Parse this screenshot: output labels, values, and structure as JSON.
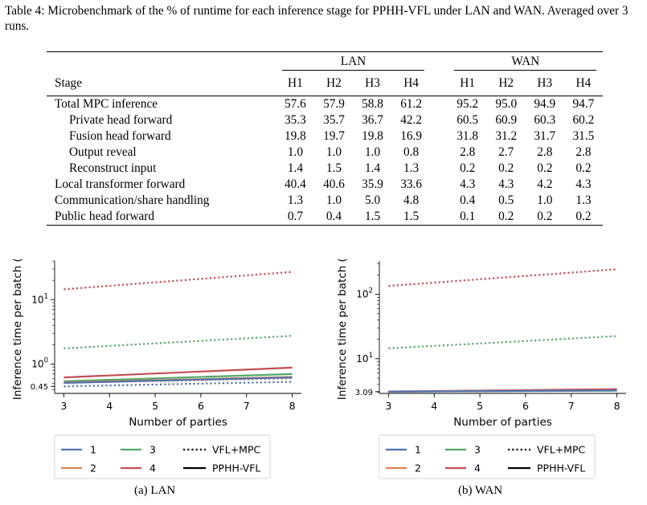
{
  "caption": "Table 4: Microbenchmark of the % of runtime for each inference stage for PPHH-VFL under LAN and WAN. Averaged over 3 runs.",
  "table": {
    "group_lan": "LAN",
    "group_wan": "WAN",
    "stage_header": "Stage",
    "col_labels": [
      "H1",
      "H2",
      "H3",
      "H4",
      "H1",
      "H2",
      "H3",
      "H4"
    ],
    "rows": [
      {
        "stage": "Total MPC inference",
        "sub": false,
        "values": [
          "57.6",
          "57.9",
          "58.8",
          "61.2",
          "95.2",
          "95.0",
          "94.9",
          "94.7"
        ]
      },
      {
        "stage": "Private head forward",
        "sub": true,
        "values": [
          "35.3",
          "35.7",
          "36.7",
          "42.2",
          "60.5",
          "60.9",
          "60.3",
          "60.2"
        ]
      },
      {
        "stage": "Fusion head forward",
        "sub": true,
        "values": [
          "19.8",
          "19.7",
          "19.8",
          "16.9",
          "31.8",
          "31.2",
          "31.7",
          "31.5"
        ]
      },
      {
        "stage": "Output reveal",
        "sub": true,
        "values": [
          "1.0",
          "1.0",
          "1.0",
          "0.8",
          "2.8",
          "2.7",
          "2.8",
          "2.8"
        ]
      },
      {
        "stage": "Reconstruct input",
        "sub": true,
        "values": [
          "1.4",
          "1.5",
          "1.4",
          "1.3",
          "0.2",
          "0.2",
          "0.2",
          "0.2"
        ]
      },
      {
        "stage": "Local transformer forward",
        "sub": false,
        "values": [
          "40.4",
          "40.6",
          "35.9",
          "33.6",
          "4.3",
          "4.3",
          "4.2",
          "4.3"
        ]
      },
      {
        "stage": "Communication/share handling",
        "sub": false,
        "values": [
          "1.3",
          "1.0",
          "5.0",
          "4.8",
          "0.4",
          "0.5",
          "1.0",
          "1.3"
        ]
      },
      {
        "stage": "Public head forward",
        "sub": false,
        "values": [
          "0.7",
          "0.4",
          "1.5",
          "1.5",
          "0.1",
          "0.2",
          "0.2",
          "0.2"
        ]
      }
    ]
  },
  "figures": {
    "subcaption_lan": "(a) LAN",
    "subcaption_wan": "(b) WAN",
    "legend_entries": [
      "1",
      "2",
      "3",
      "4",
      "VFL+MPC",
      "PPHH-VFL"
    ]
  },
  "chart_data": [
    {
      "type": "line",
      "panel": "LAN",
      "xlabel": "Number of parties",
      "ylabel": "Inference time per batch (s)",
      "yscale": "log",
      "x": [
        3,
        8
      ],
      "xticks": [
        3,
        4,
        5,
        6,
        7,
        8
      ],
      "yticks": [
        0.45,
        1,
        10
      ],
      "ytick_labels": [
        "0.45",
        "10^0",
        "10^1"
      ],
      "ylim": [
        0.35,
        40
      ],
      "series": [
        {
          "name": "4",
          "style": "VFL+MPC",
          "color": "#c44e52",
          "values": [
            14.5,
            27.0
          ]
        },
        {
          "name": "3",
          "style": "VFL+MPC",
          "color": "#55a868",
          "values": [
            1.75,
            2.75
          ]
        },
        {
          "name": "2",
          "style": "VFL+MPC",
          "color": "#dd8452",
          "values": [
            0.51,
            0.6
          ]
        },
        {
          "name": "1",
          "style": "VFL+MPC",
          "color": "#4c72b0",
          "values": [
            0.45,
            0.53
          ]
        },
        {
          "name": "4",
          "style": "PPHH-VFL",
          "color": "#c44e52",
          "values": [
            0.62,
            0.88
          ]
        },
        {
          "name": "3",
          "style": "PPHH-VFL",
          "color": "#55a868",
          "values": [
            0.54,
            0.7
          ]
        },
        {
          "name": "2",
          "style": "PPHH-VFL",
          "color": "#dd8452",
          "values": [
            0.52,
            0.63
          ]
        },
        {
          "name": "1",
          "style": "PPHH-VFL",
          "color": "#4c72b0",
          "values": [
            0.51,
            0.62
          ]
        }
      ]
    },
    {
      "type": "line",
      "panel": "WAN",
      "xlabel": "Number of parties",
      "ylabel": "Inference time per batch (s)",
      "yscale": "log",
      "x": [
        3,
        8
      ],
      "xticks": [
        3,
        4,
        5,
        6,
        7,
        8
      ],
      "yticks": [
        3.09,
        10,
        100
      ],
      "ytick_labels": [
        "3.09",
        "10^1",
        "10^2"
      ],
      "ylim": [
        2.9,
        330
      ],
      "series": [
        {
          "name": "4",
          "style": "VFL+MPC",
          "color": "#c44e52",
          "values": [
            135,
            245
          ]
        },
        {
          "name": "3",
          "style": "VFL+MPC",
          "color": "#55a868",
          "values": [
            14.5,
            22.5
          ]
        },
        {
          "name": "2",
          "style": "VFL+MPC",
          "color": "#dd8452",
          "values": [
            3.12,
            3.32
          ]
        },
        {
          "name": "1",
          "style": "VFL+MPC",
          "color": "#4c72b0",
          "values": [
            3.09,
            3.25
          ]
        },
        {
          "name": "4",
          "style": "PPHH-VFL",
          "color": "#c44e52",
          "values": [
            3.1,
            3.38
          ]
        },
        {
          "name": "3",
          "style": "PPHH-VFL",
          "color": "#55a868",
          "values": [
            3.09,
            3.2
          ]
        },
        {
          "name": "2",
          "style": "PPHH-VFL",
          "color": "#dd8452",
          "values": [
            3.09,
            3.24
          ]
        },
        {
          "name": "1",
          "style": "PPHH-VFL",
          "color": "#4c72b0",
          "values": [
            3.09,
            3.22
          ]
        }
      ]
    }
  ]
}
